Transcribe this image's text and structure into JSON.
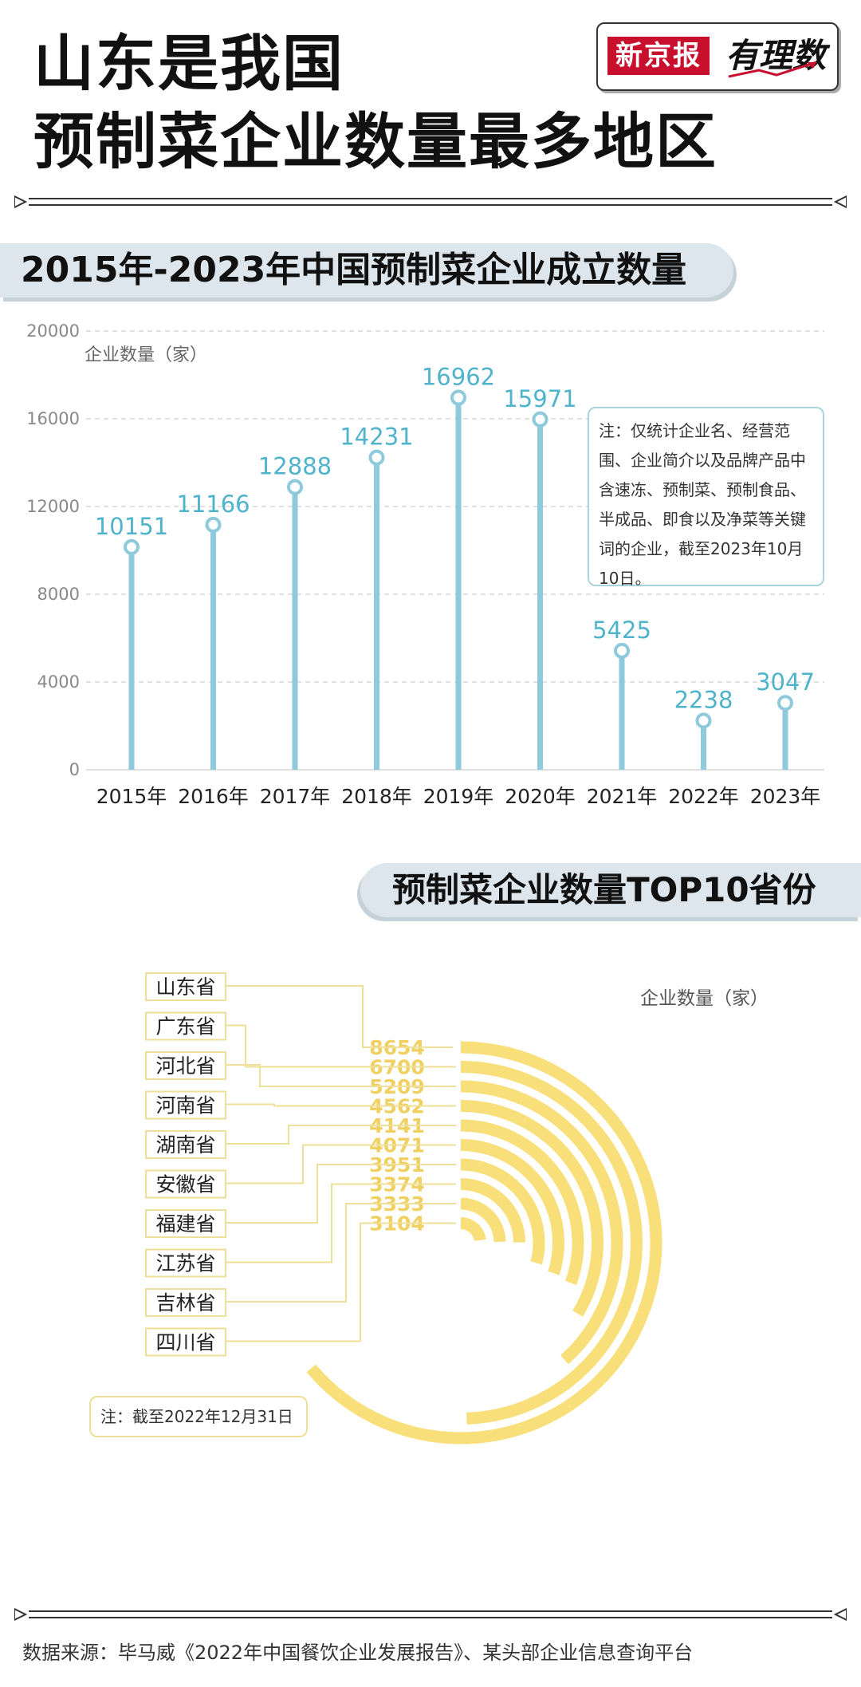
{
  "header": {
    "title_line1": "山东是我国",
    "title_line2": "预制菜企业数量最多地区",
    "brand_name": "新京报",
    "brand_column": "有理数"
  },
  "section1": {
    "title": "2015年-2023年中国预制菜企业成立数量",
    "note": "注：仅统计企业名、经营范围、企业简介以及品牌产品中含速冻、预制菜、预制食品、半成品、即食以及净菜等关键词的企业，截至2023年10月10日。"
  },
  "section2": {
    "title": "预制菜企业数量TOP10省份",
    "unit_label": "企业数量（家）",
    "note": "注：截至2022年12月31日"
  },
  "source": "数据来源：毕马威《2022年中国餐饮企业发展报告》、某头部企业信息查询平台",
  "colors": {
    "line_chart": "#8ecadb",
    "line_label": "#4fb3cc",
    "arc": "#f8df7a",
    "arc_label": "#f0d060"
  },
  "chart_data": [
    {
      "type": "bar",
      "title": "2015年-2023年中国预制菜企业成立数量",
      "ylabel": "企业数量（家）",
      "xlabel": "",
      "categories": [
        "2015年",
        "2016年",
        "2017年",
        "2018年",
        "2019年",
        "2020年",
        "2021年",
        "2022年",
        "2023年"
      ],
      "values": [
        10151,
        11166,
        12888,
        14231,
        16962,
        15971,
        5425,
        2238,
        3047
      ],
      "yticks": [
        "0",
        "4000",
        "8000",
        "12000",
        "16000",
        "20000"
      ],
      "ylim": [
        0,
        20000
      ],
      "grid": true
    },
    {
      "type": "bar",
      "title": "预制菜企业数量TOP10省份",
      "ylabel": "企业数量（家）",
      "categories": [
        "山东省",
        "广东省",
        "河北省",
        "河南省",
        "湖南省",
        "安徽省",
        "福建省",
        "江苏省",
        "吉林省",
        "四川省"
      ],
      "values": [
        8654,
        6700,
        5209,
        4562,
        4141,
        4071,
        3951,
        3374,
        3333,
        3104
      ]
    }
  ]
}
